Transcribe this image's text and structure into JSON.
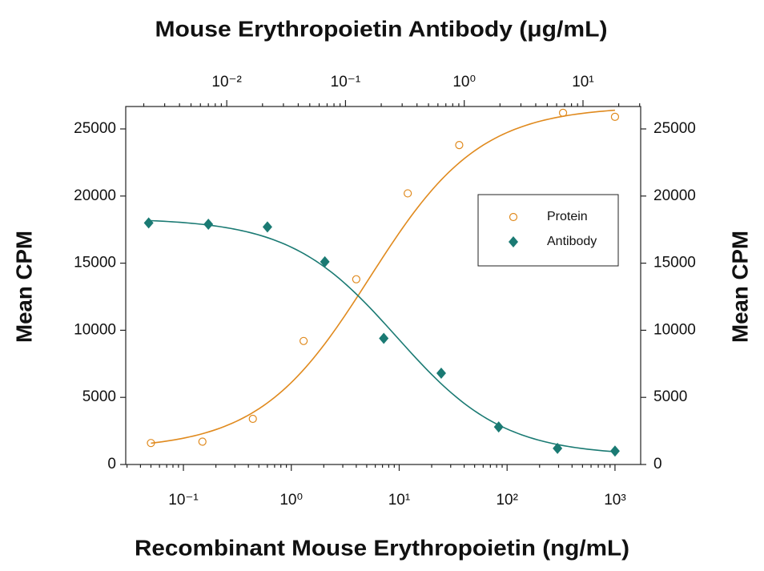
{
  "chart_data": {
    "type": "scatter",
    "title": "Mouse Erythropoietin Antibody (μg/mL)",
    "xlabel": "Recombinant Mouse Erythropoietin (ng/mL)",
    "ylabel": "Mean CPM",
    "y2label": "Mean CPM",
    "xscale": "log",
    "x2scale": "log",
    "xlim": [
      0.0292,
      1730
    ],
    "xticks": [
      {
        "value": 0.1,
        "label": "10⁻¹"
      },
      {
        "value": 1,
        "label": "10⁰"
      },
      {
        "value": 10,
        "label": "10¹"
      },
      {
        "value": 100,
        "label": "10²"
      },
      {
        "value": 1000,
        "label": "10³"
      }
    ],
    "x2lim": [
      0.00141,
      30.6
    ],
    "x2ticks": [
      {
        "value": 0.01,
        "label": "10⁻²"
      },
      {
        "value": 0.1,
        "label": "10⁻¹"
      },
      {
        "value": 1,
        "label": "10⁰"
      },
      {
        "value": 10,
        "label": "10¹"
      }
    ],
    "ylim": [
      0,
      26670
    ],
    "yticks": [
      0,
      5000,
      10000,
      15000,
      20000,
      25000
    ],
    "y2lim": [
      0,
      26670
    ],
    "y2ticks": [
      0,
      5000,
      10000,
      15000,
      20000,
      25000
    ],
    "legend_position": "upper right",
    "series": [
      {
        "name": "Protein",
        "color": "#e08a1e",
        "marker": "open-circle",
        "axis": "x",
        "x": [
          0.05,
          0.15,
          0.44,
          1.3,
          4,
          12,
          36,
          330,
          1000
        ],
        "values": [
          1600,
          1700,
          3400,
          9200,
          13800,
          20200,
          23800,
          26200,
          25900
        ]
      },
      {
        "name": "Antibody",
        "color": "#1a7a73",
        "marker": "diamond",
        "axis": "x2",
        "x": [
          0.0022,
          0.007,
          0.022,
          0.067,
          0.21,
          0.64,
          1.95,
          6.1,
          18.6
        ],
        "values": [
          18000,
          17900,
          17700,
          15100,
          9400,
          6800,
          2800,
          1200,
          1000
        ]
      }
    ]
  }
}
